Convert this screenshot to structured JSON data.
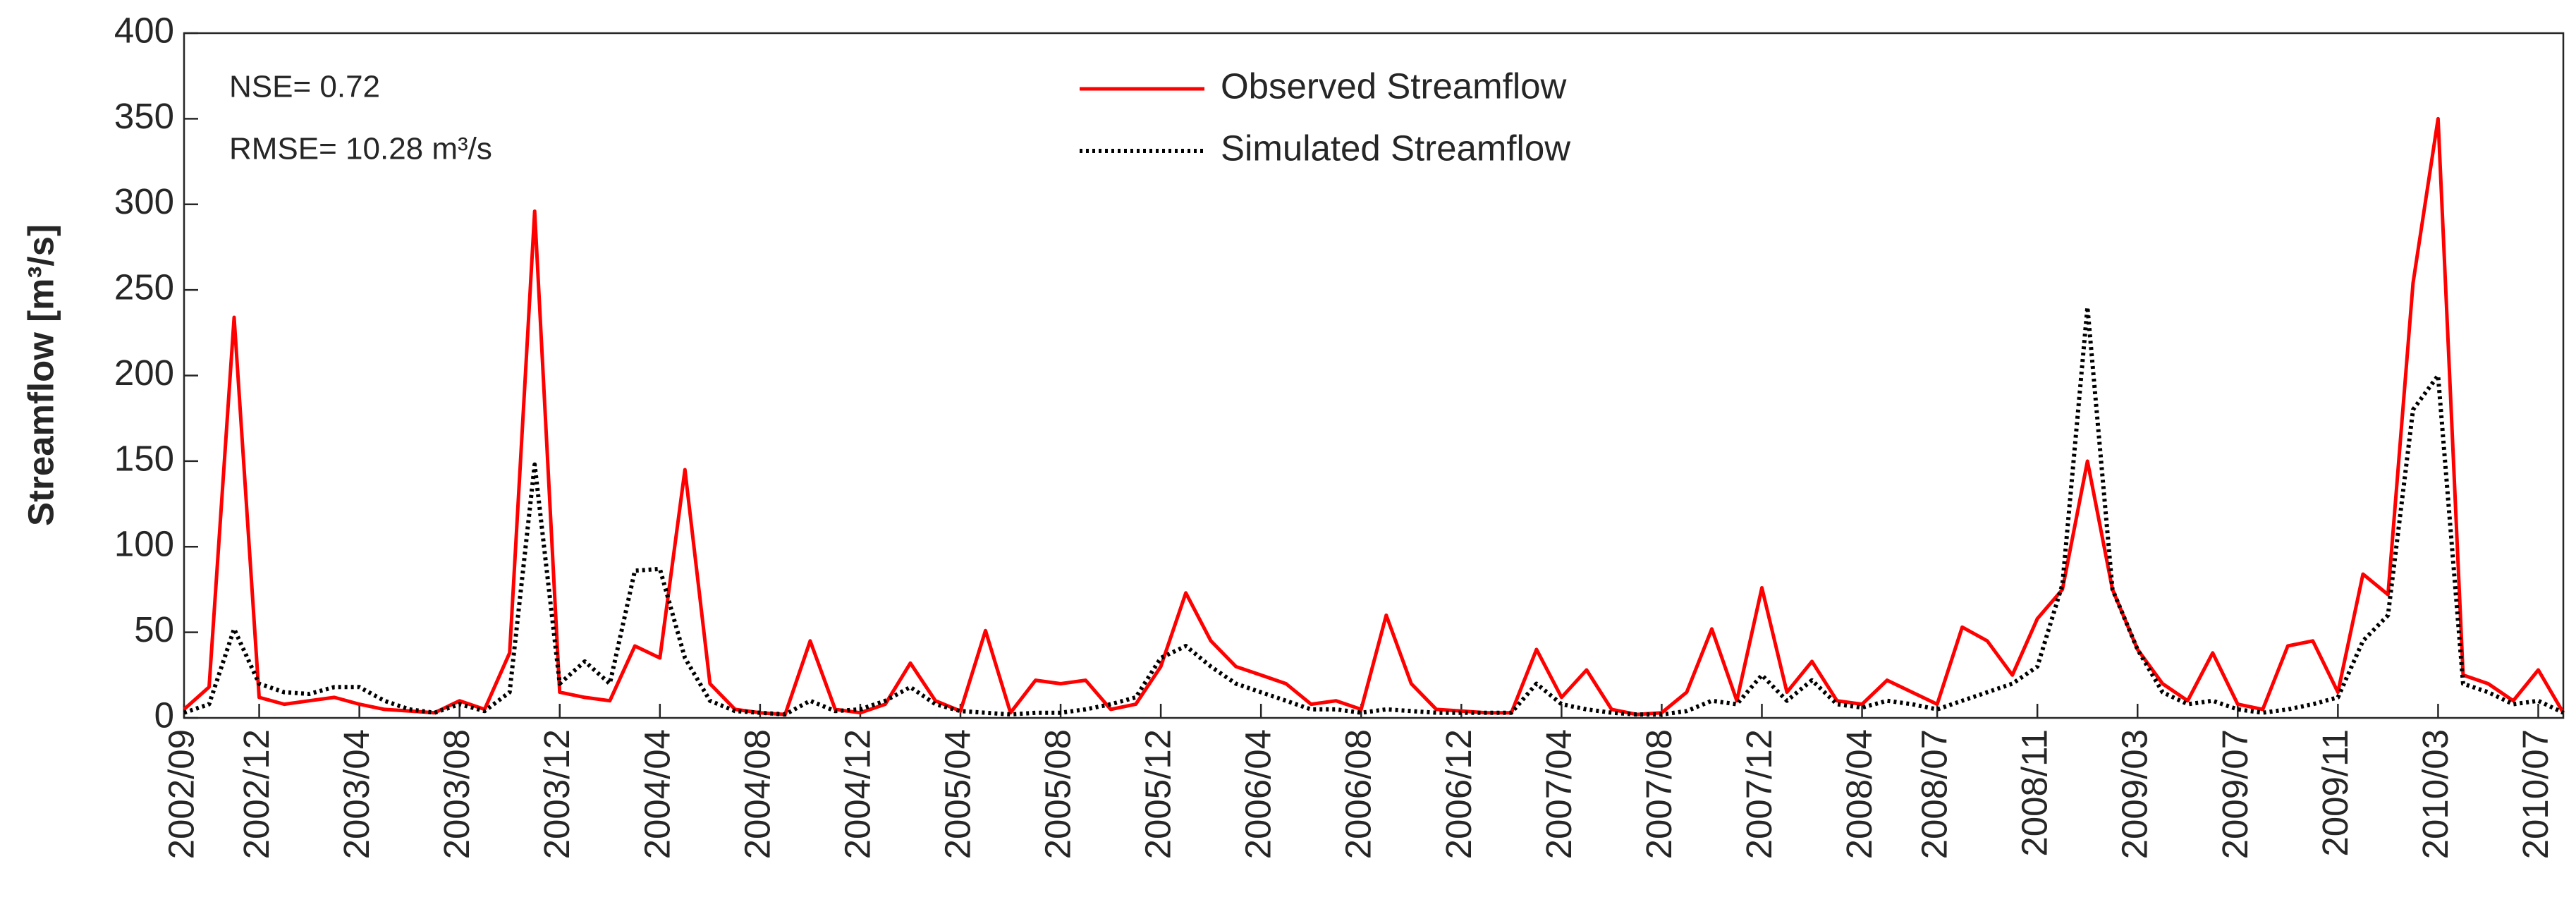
{
  "chart_data": {
    "type": "line",
    "ylabel": "Streamflow [m³/s]",
    "annotations": [
      "NSE= 0.72",
      "RMSE= 10.28 m³/s"
    ],
    "x": [
      "2002/09",
      "2002/10",
      "2002/11",
      "2002/12",
      "2003/01",
      "2003/02",
      "2003/03",
      "2003/04",
      "2003/05",
      "2003/06",
      "2003/07",
      "2003/08",
      "2003/09",
      "2003/10",
      "2003/11",
      "2003/12",
      "2004/01",
      "2004/02",
      "2004/03",
      "2004/04",
      "2004/05",
      "2004/06",
      "2004/07",
      "2004/08",
      "2004/09",
      "2004/10",
      "2004/11",
      "2004/12",
      "2005/01",
      "2005/02",
      "2005/03",
      "2005/04",
      "2005/05",
      "2005/06",
      "2005/07",
      "2005/08",
      "2005/09",
      "2005/10",
      "2005/11",
      "2005/12",
      "2006/01",
      "2006/02",
      "2006/03",
      "2006/04",
      "2006/05",
      "2006/06",
      "2006/07",
      "2006/08",
      "2006/09",
      "2006/10",
      "2006/11",
      "2006/12",
      "2007/01",
      "2007/02",
      "2007/03",
      "2007/04",
      "2007/05",
      "2007/06",
      "2007/07",
      "2007/08",
      "2007/09",
      "2007/10",
      "2007/11",
      "2007/12",
      "2008/01",
      "2008/02",
      "2008/03",
      "2008/04",
      "2008/05",
      "2008/06",
      "2008/07",
      "2008/08",
      "2008/09",
      "2008/10",
      "2008/11",
      "2008/12",
      "2009/01",
      "2009/02",
      "2009/03",
      "2009/04",
      "2009/05",
      "2009/06",
      "2009/07",
      "2009/08",
      "2009/09",
      "2009/10",
      "2009/11",
      "2009/12",
      "2010/01",
      "2010/02",
      "2010/03",
      "2010/04",
      "2010/05",
      "2010/06",
      "2010/07",
      "2010/08"
    ],
    "series": [
      {
        "name": "Observed Streamflow",
        "color": "#ff0000",
        "style": "solid",
        "values": [
          5,
          18,
          234,
          12,
          8,
          10,
          12,
          8,
          5,
          4,
          3,
          10,
          5,
          38,
          296,
          15,
          12,
          10,
          42,
          35,
          145,
          20,
          5,
          3,
          2,
          45,
          5,
          3,
          8,
          32,
          10,
          4,
          51,
          3,
          22,
          20,
          22,
          5,
          8,
          30,
          73,
          45,
          30,
          25,
          20,
          8,
          10,
          5,
          60,
          20,
          5,
          4,
          3,
          3,
          40,
          12,
          28,
          5,
          2,
          3,
          15,
          52,
          10,
          76,
          15,
          33,
          10,
          8,
          22,
          15,
          8,
          53,
          45,
          25,
          58,
          75,
          150,
          75,
          40,
          20,
          10,
          38,
          8,
          5,
          42,
          45,
          15,
          84,
          72,
          254,
          350,
          25,
          20,
          10,
          28,
          3
        ]
      },
      {
        "name": "Simulated Streamflow",
        "color": "#000000",
        "style": "dotted",
        "values": [
          3,
          8,
          52,
          20,
          15,
          14,
          18,
          18,
          10,
          5,
          3,
          8,
          4,
          15,
          148,
          20,
          33,
          20,
          86,
          87,
          35,
          10,
          4,
          3,
          2,
          10,
          4,
          5,
          10,
          18,
          8,
          4,
          3,
          2,
          3,
          3,
          5,
          8,
          12,
          35,
          42,
          30,
          20,
          15,
          10,
          5,
          5,
          3,
          5,
          4,
          3,
          3,
          3,
          3,
          20,
          8,
          5,
          3,
          2,
          2,
          4,
          10,
          8,
          25,
          10,
          22,
          8,
          6,
          10,
          8,
          5,
          10,
          15,
          20,
          30,
          78,
          240,
          75,
          40,
          15,
          8,
          10,
          5,
          3,
          5,
          8,
          12,
          45,
          60,
          180,
          200,
          20,
          15,
          8,
          10,
          3
        ]
      }
    ],
    "xlim": [
      "2002/09",
      "2010/08"
    ],
    "xticks": [
      "2002/09",
      "2002/12",
      "2003/04",
      "2003/08",
      "2003/12",
      "2004/04",
      "2004/08",
      "2004/12",
      "2005/04",
      "2005/08",
      "2005/12",
      "2006/04",
      "2006/08",
      "2006/12",
      "2007/04",
      "2007/08",
      "2007/12",
      "2008/04",
      "2008/07",
      "2008/11",
      "2009/03",
      "2009/07",
      "2009/11",
      "2010/03",
      "2010/07"
    ],
    "ylim": [
      0,
      400
    ],
    "yticks": [
      0,
      50,
      100,
      150,
      200,
      250,
      300,
      350,
      400
    ],
    "legend": "top-center"
  }
}
